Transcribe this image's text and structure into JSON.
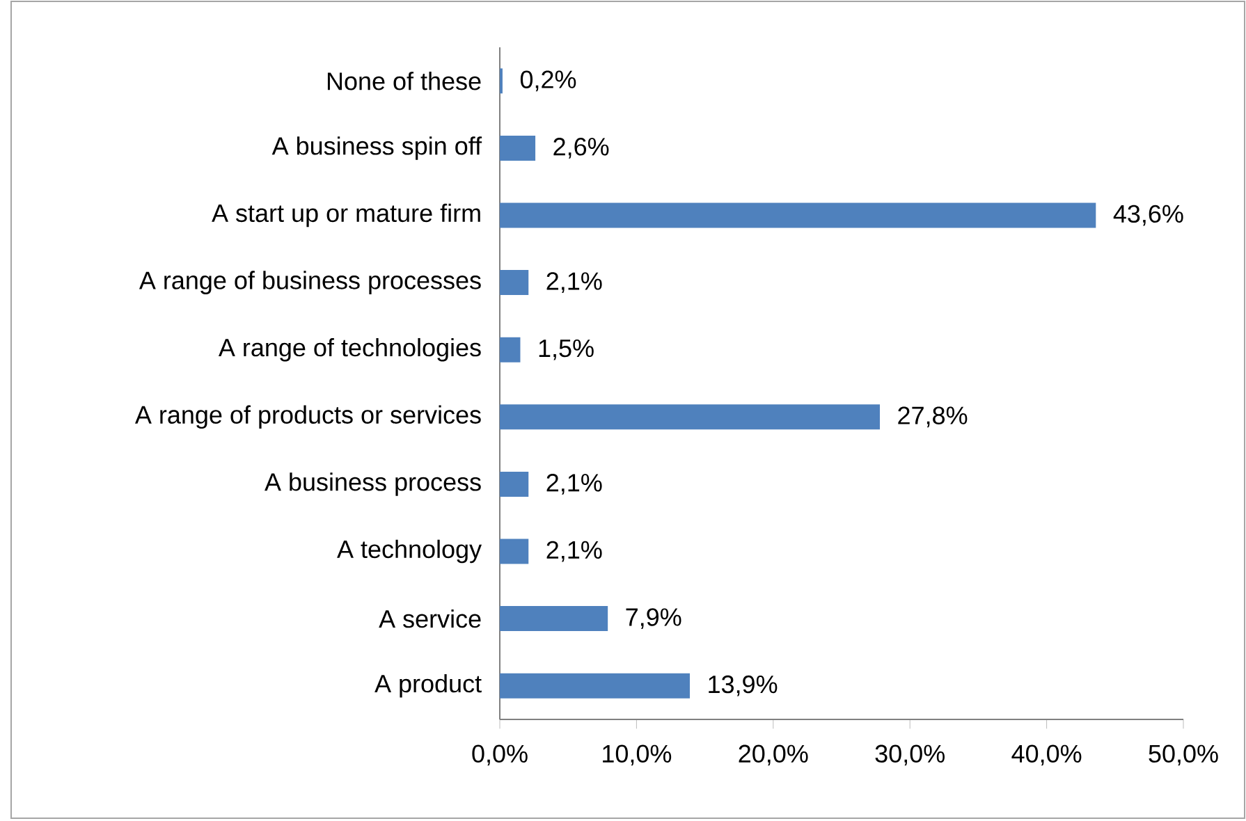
{
  "chart_data": {
    "type": "bar",
    "orientation": "horizontal",
    "categories": [
      "None of these",
      "A business spin off",
      "A start up or mature firm",
      "A range of business processes",
      "A range of technologies",
      "A range of products or services",
      "A business process",
      "A technology",
      "A service",
      "A product"
    ],
    "values": [
      0.2,
      2.6,
      43.6,
      2.1,
      1.5,
      27.8,
      2.1,
      2.1,
      7.9,
      13.9
    ],
    "value_labels": [
      "0,2%",
      "2,6%",
      "43,6%",
      "2,1%",
      "1,5%",
      "27,8%",
      "2,1%",
      "2,1%",
      "7,9%",
      "13,9%"
    ],
    "color": "#4f81bd",
    "xlim": [
      0,
      50
    ],
    "xticks": [
      {
        "value": 0,
        "label": "0,0%"
      },
      {
        "value": 10,
        "label": "10,0%"
      },
      {
        "value": 20,
        "label": "20,0%"
      },
      {
        "value": 30,
        "label": "30,0%"
      },
      {
        "value": 40,
        "label": "40,0%"
      },
      {
        "value": 50,
        "label": "50,0%"
      }
    ],
    "grid": false
  }
}
